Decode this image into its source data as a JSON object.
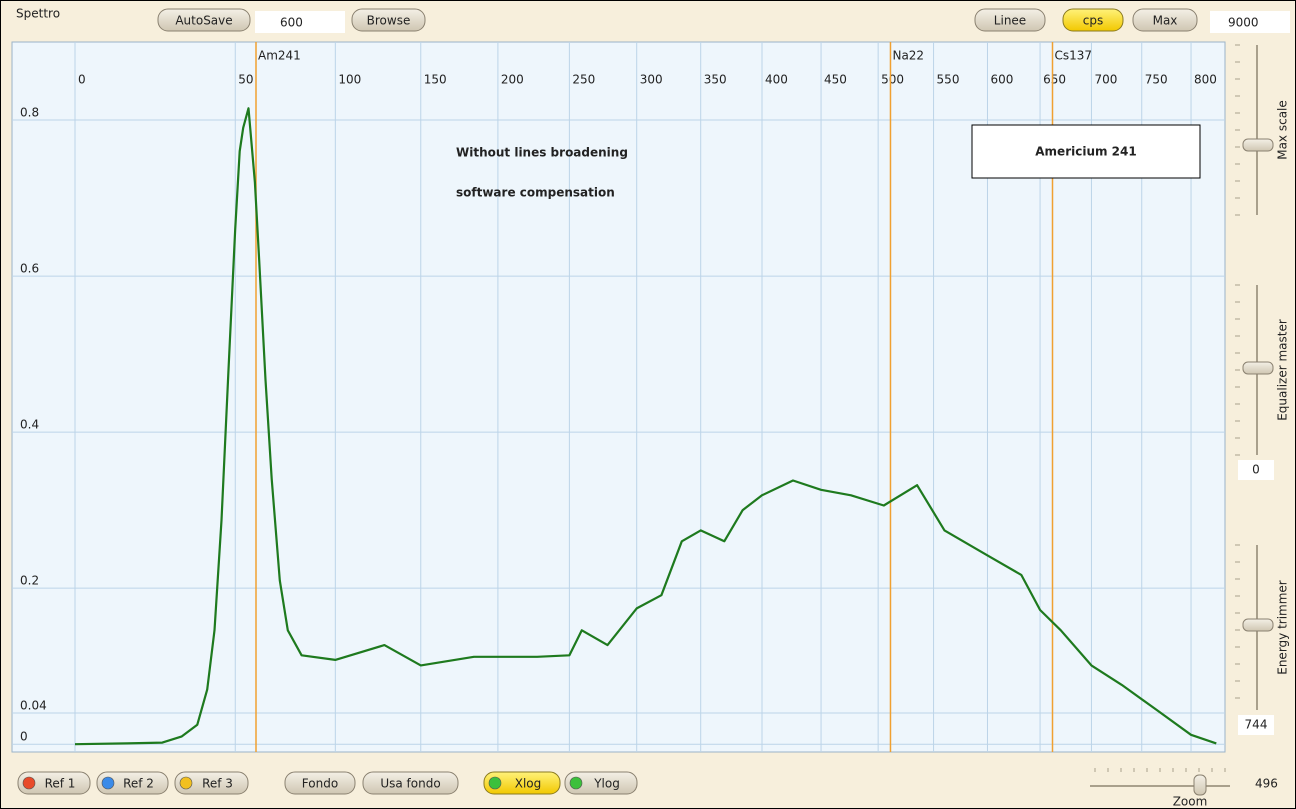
{
  "toolbar": {
    "title": "Spettro",
    "autosave": "AutoSave",
    "autosave_field": "600",
    "browse": "Browse",
    "linee": "Linee",
    "cps": "cps",
    "max": "Max",
    "max_field": "9000"
  },
  "chart_data": {
    "type": "line",
    "color": "#1e7a1e",
    "x": [
      0,
      10,
      21,
      28,
      34,
      38,
      41,
      44,
      47,
      50,
      52,
      53.6,
      56,
      59,
      61,
      64,
      67,
      71,
      75,
      82,
      100,
      128,
      150,
      184,
      227,
      250,
      259,
      278,
      300,
      319,
      335,
      350,
      369,
      384,
      400,
      426,
      450,
      476,
      505,
      535,
      560,
      600,
      632,
      650,
      670,
      700,
      730,
      765,
      800,
      826
    ],
    "values": [
      0,
      0.001,
      0.002,
      0.01,
      0.025,
      0.07,
      0.146,
      0.287,
      0.48,
      0.66,
      0.76,
      0.79,
      0.815,
      0.72,
      0.62,
      0.467,
      0.34,
      0.21,
      0.146,
      0.114,
      0.108,
      0.127,
      0.101,
      0.112,
      0.112,
      0.114,
      0.146,
      0.127,
      0.174,
      0.191,
      0.26,
      0.274,
      0.26,
      0.3,
      0.319,
      0.338,
      0.326,
      0.319,
      0.306,
      0.332,
      0.274,
      0.242,
      0.217,
      0.172,
      0.146,
      0.101,
      0.076,
      0.044,
      0.012,
      0.001
    ],
    "xlim": [
      0,
      835
    ],
    "xticks": [
      0,
      50,
      100,
      150,
      200,
      250,
      300,
      350,
      400,
      450,
      500,
      550,
      600,
      650,
      700,
      750,
      800
    ],
    "ylim": [
      -0.01,
      0.9
    ],
    "yticks": [
      0,
      0.04,
      0.2,
      0.4,
      0.6,
      0.8
    ],
    "xlog": true,
    "grid": true,
    "markers": [
      {
        "label": "Am241",
        "value": 59.5,
        "color": "#f0a030"
      },
      {
        "label": "Na22",
        "value": 511,
        "color": "#f0a030"
      },
      {
        "label": "Cs137",
        "value": 662,
        "color": "#f0a030"
      }
    ],
    "annotations": [
      "Without lines broadening",
      "software compensation"
    ],
    "box_label": "Americium 241"
  },
  "side_panel": {
    "max_scale": "Max scale",
    "equalizer": "Equalizer master",
    "equalizer_value": "0",
    "energy_trimmer": "Energy trimmer",
    "energy_value": "744"
  },
  "bottom_bar": {
    "ref1": "Ref 1",
    "ref2": "Ref 2",
    "ref3": "Ref 3",
    "fondo": "Fondo",
    "usa_fondo": "Usa fondo",
    "xlog": "Xlog",
    "ylog": "Ylog",
    "zoom_value": "496",
    "zoom": "Zoom"
  }
}
